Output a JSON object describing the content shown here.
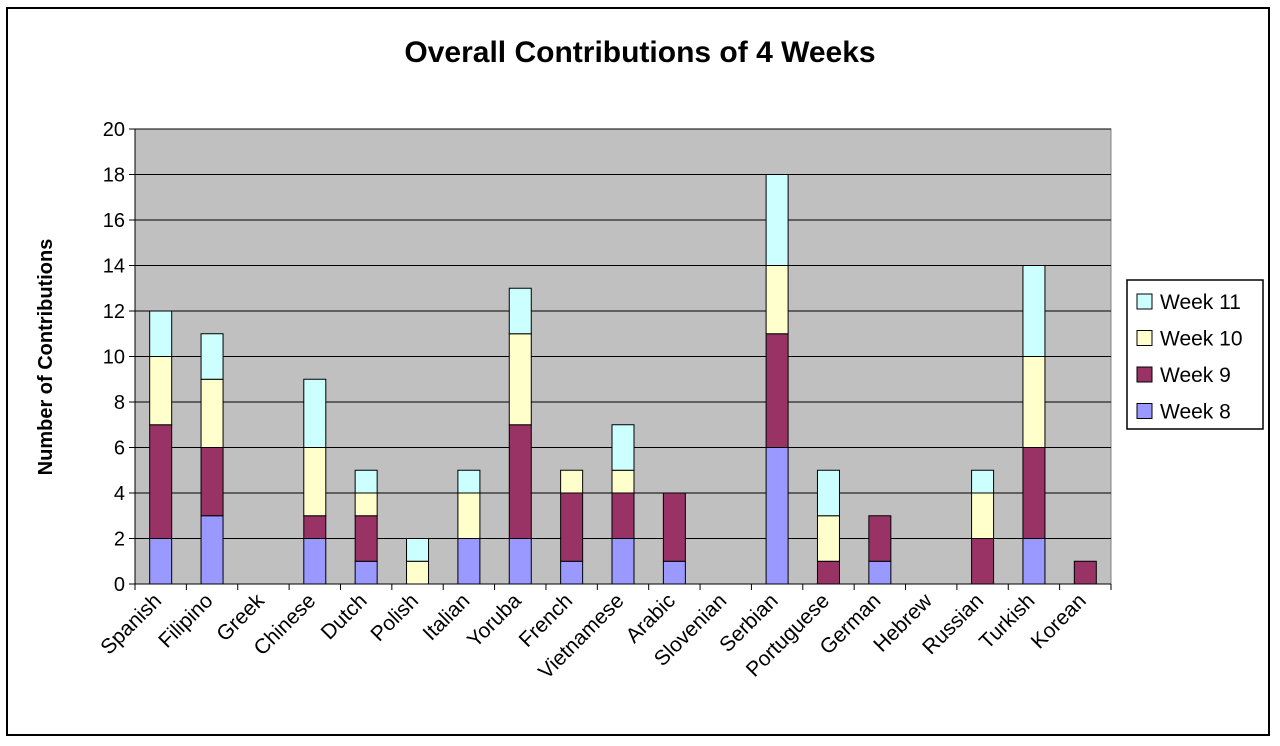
{
  "chart_data": {
    "type": "bar",
    "stacked": true,
    "title": "Overall Contributions of 4 Weeks",
    "xlabel": "",
    "ylabel": "Number of Contributions",
    "ylim": [
      0,
      20
    ],
    "yticks": [
      0,
      2,
      4,
      6,
      8,
      10,
      12,
      14,
      16,
      18,
      20
    ],
    "grid": true,
    "legend_position": "right",
    "categories": [
      "Spanish",
      "Filipino",
      "Greek",
      "Chinese",
      "Dutch",
      "Polish",
      "Italian",
      "Yoruba",
      "French",
      "Vietnamese",
      "Arabic",
      "Slovenian",
      "Serbian",
      "Portuguese",
      "German",
      "Hebrew",
      "Russian",
      "Turkish",
      "Korean"
    ],
    "series": [
      {
        "name": "Week 8",
        "color": "#9999ff",
        "values": [
          2,
          3,
          0,
          2,
          1,
          0,
          2,
          2,
          1,
          2,
          1,
          0,
          6,
          0,
          1,
          0,
          0,
          2,
          0
        ]
      },
      {
        "name": "Week 9",
        "color": "#993366",
        "values": [
          5,
          3,
          0,
          1,
          2,
          0,
          0,
          5,
          3,
          2,
          3,
          0,
          5,
          1,
          2,
          0,
          2,
          4,
          1
        ]
      },
      {
        "name": "Week 10",
        "color": "#ffffcc",
        "values": [
          3,
          3,
          0,
          3,
          1,
          1,
          2,
          4,
          1,
          1,
          0,
          0,
          3,
          2,
          0,
          0,
          2,
          4,
          0
        ]
      },
      {
        "name": "Week 11",
        "color": "#ccffff",
        "values": [
          2,
          2,
          0,
          3,
          1,
          1,
          1,
          2,
          0,
          2,
          0,
          0,
          4,
          2,
          0,
          0,
          1,
          4,
          0
        ]
      }
    ],
    "plot_background": "#c0c0c0"
  }
}
